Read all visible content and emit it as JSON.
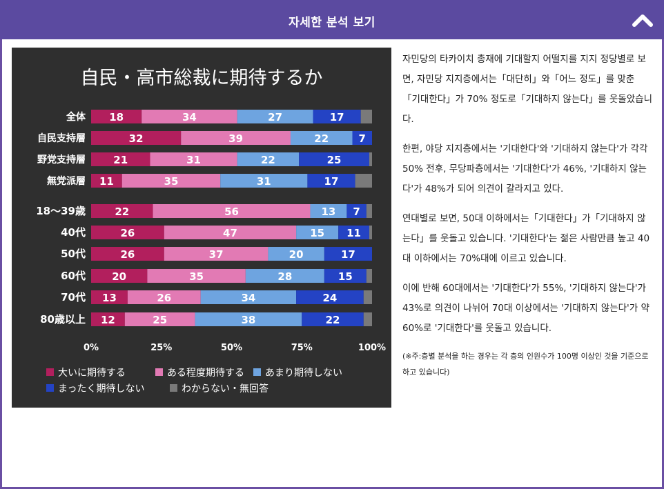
{
  "header": {
    "title": "자세한 분석 보기"
  },
  "chart_data": {
    "type": "bar",
    "orientation": "horizontal",
    "stacked": true,
    "title": "自民・高市総裁に期待するか",
    "categories": [
      "全体",
      "自民支持層",
      "野党支持層",
      "無党派層",
      "18～39歳",
      "40代",
      "50代",
      "60代",
      "70代",
      "80歳以上"
    ],
    "series": [
      {
        "name": "大いに期待する",
        "color": "#b21f5d",
        "values": [
          18,
          32,
          21,
          11,
          22,
          26,
          26,
          20,
          13,
          12
        ]
      },
      {
        "name": "ある程度期待する",
        "color": "#e27ab4",
        "values": [
          34,
          39,
          31,
          35,
          56,
          47,
          37,
          35,
          26,
          25
        ]
      },
      {
        "name": "あまり期待しない",
        "color": "#6ea4e0",
        "values": [
          27,
          22,
          22,
          31,
          13,
          15,
          20,
          28,
          34,
          38
        ]
      },
      {
        "name": "まったく期待しない",
        "color": "#2443c4",
        "values": [
          17,
          7,
          25,
          17,
          7,
          11,
          17,
          15,
          24,
          22
        ]
      },
      {
        "name": "わからない・無回答",
        "color": "#7a7a7a",
        "values": [
          4,
          0,
          1,
          6,
          2,
          1,
          0,
          2,
          3,
          3
        ]
      }
    ],
    "xticks": [
      "0%",
      "25%",
      "50%",
      "75%",
      "100%"
    ],
    "xlim": [
      0,
      100
    ],
    "legend": "bottom"
  },
  "article": {
    "paragraphs": [
      "자민당의 타카이치 총재에 기대할지 어떨지를 지지 정당별로 보면, 자민당 지지층에서는「대단히」와「어느 정도」를 맞춘「기대한다」가 70% 정도로「기대하지 않는다」를 웃돌았습니다.",
      "한편, 야당 지지층에서는 '기대한다'와 '기대하지 않는다'가 각각 50% 전후, 무당파층에서는 '기대한다'가 46%, '기대하지 않는다'가 48%가 되어 의견이 갈라지고 있다.",
      "연대별로 보면, 50대 이하에서는「기대한다」가「기대하지 않는다」를 웃돌고 있습니다. '기대한다'는 젊은 사람만큼 높고 40대 이하에서는 70%대에 이르고 있습니다.",
      "이에 반해 60대에서는 '기대한다'가 55%, '기대하지 않는다'가 43%로 의견이 나뉘어 70대 이상에서는 '기대하지 않는다'가 약 60%로 '기대한다'를 웃돌고 있습니다."
    ],
    "note": "(※주:층별 분석을 하는 경우는 각 층의 인원수가 100명 이상인 것을 기준으로 하고 있습니다)"
  }
}
